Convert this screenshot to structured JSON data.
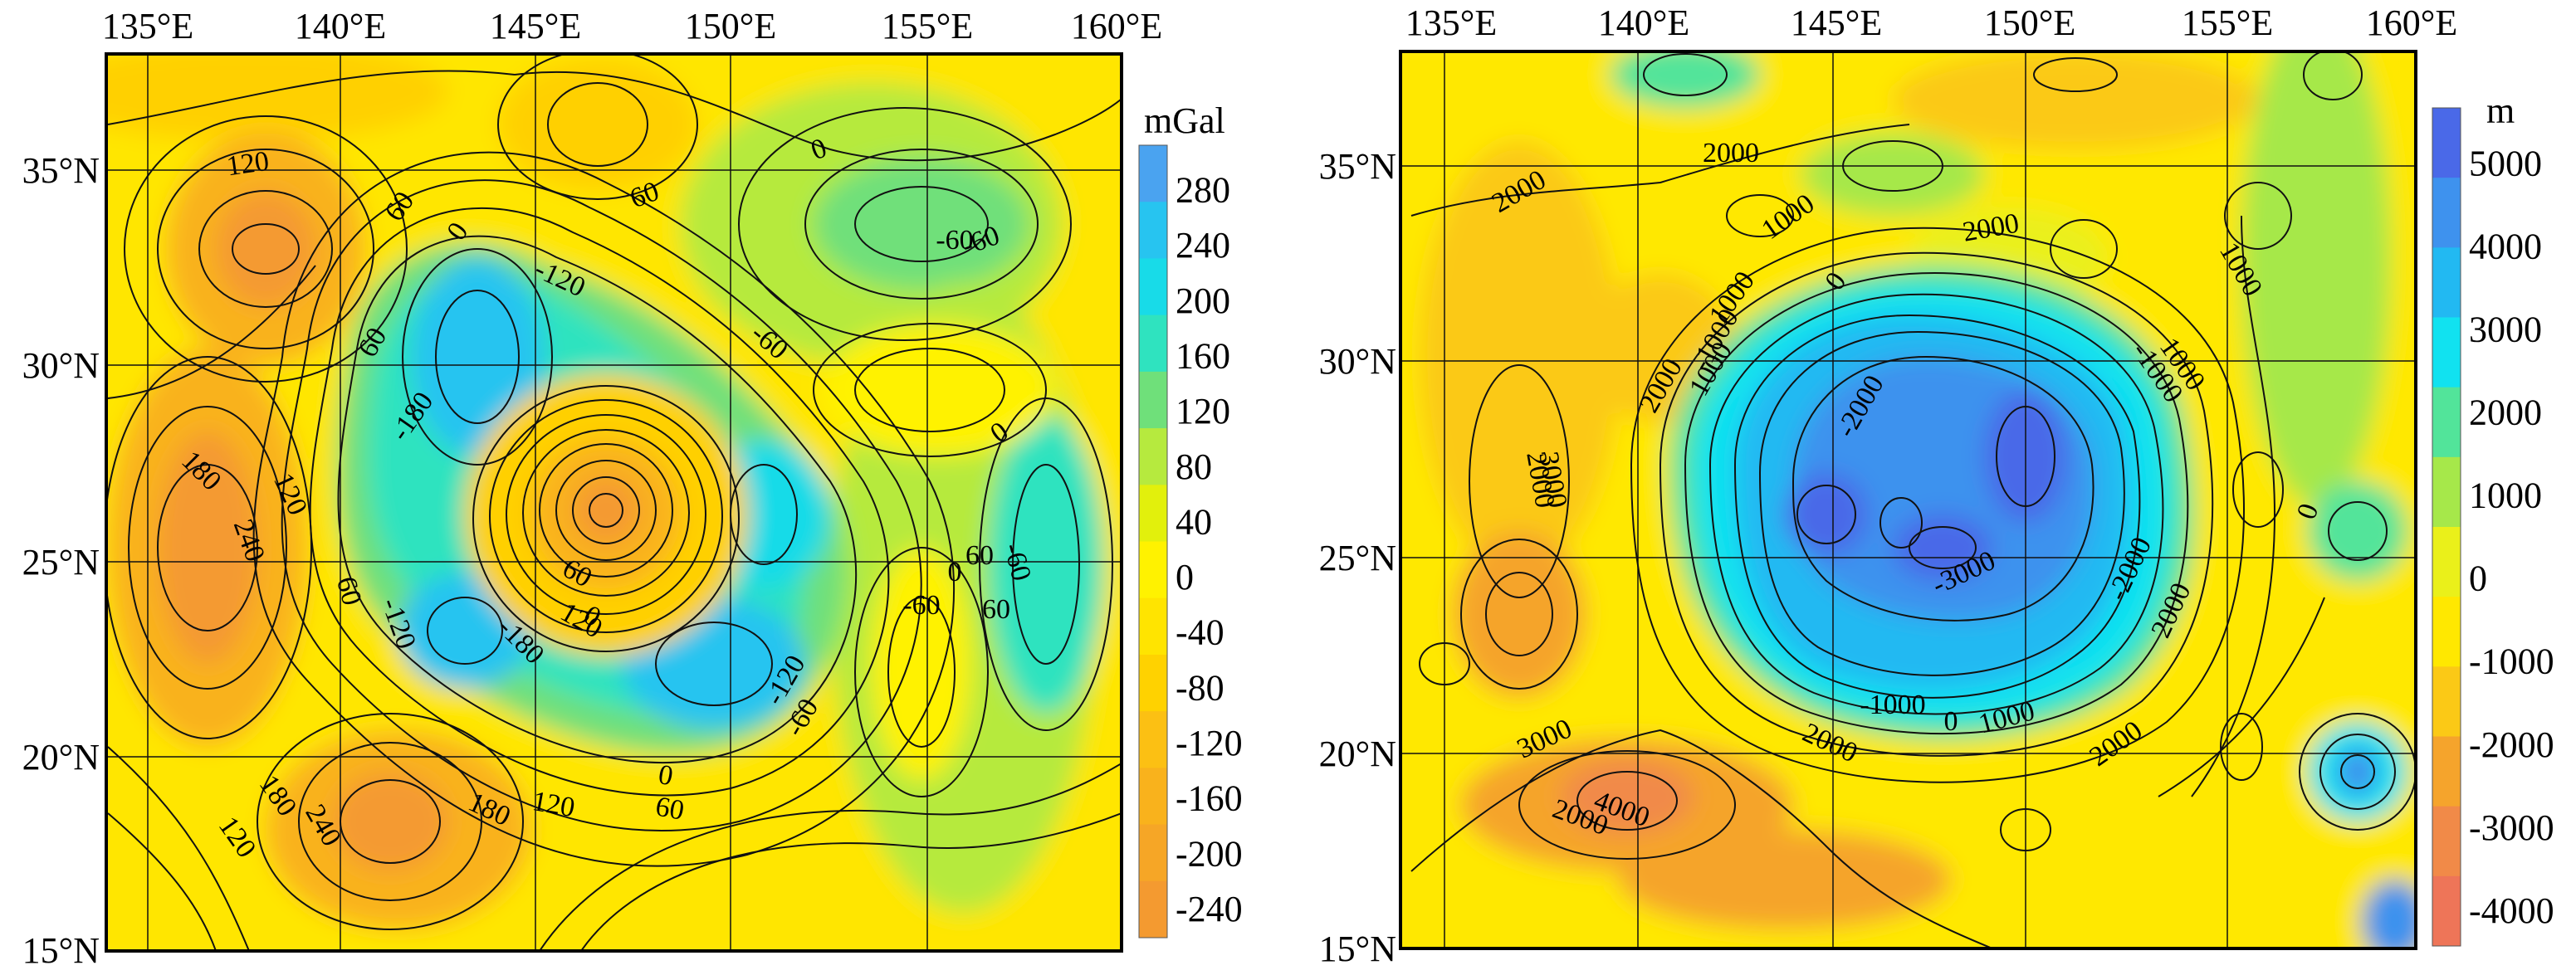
{
  "maps": [
    {
      "id": "gravity",
      "x_ticks": [
        "135°E",
        "140°E",
        "145°E",
        "150°E",
        "155°E",
        "160°E"
      ],
      "y_ticks": [
        "35°N",
        "30°N",
        "25°N",
        "20°N",
        "15°N"
      ],
      "colorbar": {
        "unit": "mGal",
        "labels": [
          "280",
          "240",
          "200",
          "160",
          "120",
          "80",
          "40",
          "0",
          "-40",
          "-80",
          "-120",
          "-160",
          "-200",
          "-240"
        ]
      },
      "contour_labels": [
        "120",
        "60",
        "0",
        "60",
        "0",
        "-60",
        "-120",
        "-60",
        "0",
        "-180",
        "60",
        "-60",
        "180",
        "120",
        "240",
        "60",
        "-120",
        "-180",
        "60",
        "0",
        "120",
        "0",
        "60",
        "-120",
        "-60",
        "180",
        "240",
        "180",
        "120",
        "0",
        "60",
        "120",
        "60",
        "-60",
        "-60"
      ]
    },
    {
      "id": "topography",
      "x_ticks": [
        "135°E",
        "140°E",
        "145°E",
        "150°E",
        "155°E",
        "160°E"
      ],
      "y_ticks": [
        "35°N",
        "30°N",
        "25°N",
        "20°N",
        "15°N"
      ],
      "colorbar": {
        "unit": "m",
        "labels": [
          "5000",
          "4000",
          "3000",
          "2000",
          "1000",
          "0",
          "-1000",
          "-2000",
          "-3000",
          "-4000"
        ]
      },
      "contour_labels": [
        "2000",
        "2000",
        "1000",
        "2000",
        "1000",
        "0",
        "1000",
        "2000",
        "-1000",
        "-2000",
        "-1000",
        "1000",
        "2000",
        "3000",
        "-3000",
        "-2000",
        "2000",
        "-1000",
        "0",
        "1000",
        "2000",
        "2000",
        "1000",
        "3000",
        "4000",
        "2000",
        "0"
      ]
    }
  ],
  "colors": {
    "gravity_scale": [
      "#4aa3f0",
      "#27c4f0",
      "#18dbe8",
      "#2fe3bf",
      "#6fe07a",
      "#b6ea3e",
      "#e2f00c",
      "#fff200",
      "#ffe400",
      "#ffd200",
      "#fcc013",
      "#f9b21c",
      "#f6a626",
      "#f49a30"
    ],
    "topo_scale": [
      "#4a69e8",
      "#3e92ee",
      "#22b9f2",
      "#11e2f0",
      "#52e49a",
      "#a6e84a",
      "#eaf01a",
      "#ffe800",
      "#fbc916",
      "#f5a42c",
      "#f18a48",
      "#ee7558"
    ]
  }
}
